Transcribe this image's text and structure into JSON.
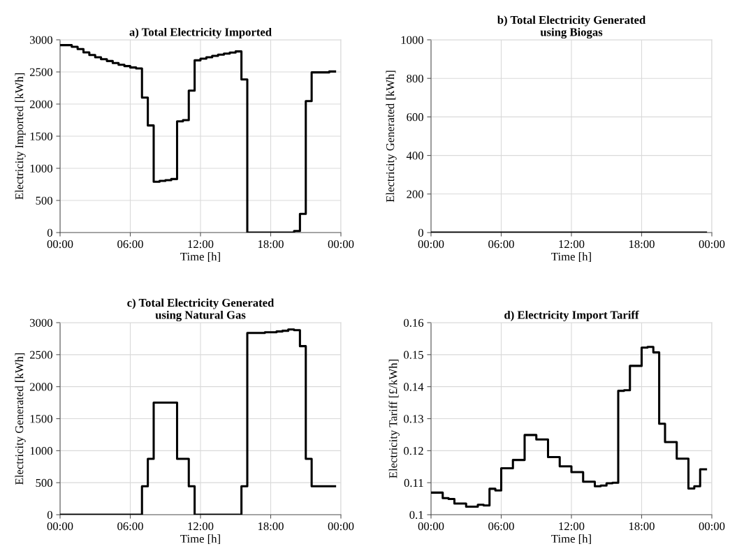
{
  "chart_data": [
    {
      "type": "step",
      "title": "a) Total Electricity Imported",
      "xlabel": "Time [h]",
      "ylabel": "Electricity Imported [kWh]",
      "x": [
        0,
        0.5,
        1,
        1.5,
        2,
        2.5,
        3,
        3.5,
        4,
        4.5,
        5,
        5.5,
        6,
        6.5,
        7,
        7.5,
        8,
        8.5,
        9,
        9.5,
        10,
        10.5,
        11,
        11.5,
        12,
        12.5,
        13,
        13.5,
        14,
        14.5,
        15,
        15.5,
        16,
        16.5,
        17,
        17.5,
        18,
        18.5,
        19,
        19.5,
        20,
        20.5,
        21,
        21.5,
        22,
        22.5,
        23,
        23.5
      ],
      "series": [
        {
          "color": "#000000",
          "values": [
            2917,
            2917,
            2891,
            2855,
            2804,
            2764,
            2728,
            2699,
            2670,
            2638,
            2612,
            2591,
            2569,
            2554,
            2101,
            1667,
            790,
            804,
            815,
            833,
            1732,
            1750,
            2210,
            2681,
            2706,
            2728,
            2750,
            2768,
            2786,
            2801,
            2819,
            2384,
            0,
            0,
            0,
            0,
            0,
            0,
            0,
            0,
            25,
            290,
            2047,
            2493,
            2493,
            2493,
            2507,
            2507
          ]
        }
      ],
      "xlim": [
        0,
        24
      ],
      "xticks": [
        {
          "value": 0,
          "label": "00:00"
        },
        {
          "value": 6,
          "label": "06:00"
        },
        {
          "value": 12,
          "label": "12:00"
        },
        {
          "value": 18,
          "label": "18:00"
        },
        {
          "value": 24,
          "label": "00:00"
        }
      ],
      "ylim": [
        0,
        3000
      ],
      "yticks": [
        0,
        500,
        1000,
        1500,
        2000,
        2500,
        3000
      ],
      "grid": true,
      "line_style": "solid"
    },
    {
      "type": "step",
      "title": "b) Total Electricity Generated\nusing Biogas",
      "xlabel": "Time [h]",
      "ylabel": "Electricity Generated [kWh]",
      "x": [
        0,
        0.5,
        1,
        1.5,
        2,
        2.5,
        3,
        3.5,
        4,
        4.5,
        5,
        5.5,
        6,
        6.5,
        7,
        7.5,
        8,
        8.5,
        9,
        9.5,
        10,
        10.5,
        11,
        11.5,
        12,
        12.5,
        13,
        13.5,
        14,
        14.5,
        15,
        15.5,
        16,
        16.5,
        17,
        17.5,
        18,
        18.5,
        19,
        19.5,
        20,
        20.5,
        21,
        21.5,
        22,
        22.5,
        23,
        23.5
      ],
      "series": [
        {
          "color": "#000000",
          "values": [
            0,
            0,
            0,
            0,
            0,
            0,
            0,
            0,
            0,
            0,
            0,
            0,
            0,
            0,
            0,
            0,
            0,
            0,
            0,
            0,
            0,
            0,
            0,
            0,
            0,
            0,
            0,
            0,
            0,
            0,
            0,
            0,
            0,
            0,
            0,
            0,
            0,
            0,
            0,
            0,
            0,
            0,
            0,
            0,
            0,
            0,
            0,
            0
          ]
        }
      ],
      "xlim": [
        0,
        24
      ],
      "xticks": [
        {
          "value": 0,
          "label": "00:00"
        },
        {
          "value": 6,
          "label": "06:00"
        },
        {
          "value": 12,
          "label": "12:00"
        },
        {
          "value": 18,
          "label": "18:00"
        },
        {
          "value": 24,
          "label": "00:00"
        }
      ],
      "ylim": [
        0,
        1000
      ],
      "yticks": [
        0,
        200,
        400,
        600,
        800,
        1000
      ],
      "grid": true,
      "line_style": "solid"
    },
    {
      "type": "step",
      "title": "c) Total Electricity Generated\nusing Natural Gas",
      "xlabel": "Time [h]",
      "ylabel": "Electricity Generated [kWh]",
      "x": [
        0,
        0.5,
        1,
        1.5,
        2,
        2.5,
        3,
        3.5,
        4,
        4.5,
        5,
        5.5,
        6,
        6.5,
        7,
        7.5,
        8,
        8.5,
        9,
        9.5,
        10,
        10.5,
        11,
        11.5,
        12,
        12.5,
        13,
        13.5,
        14,
        14.5,
        15,
        15.5,
        16,
        16.5,
        17,
        17.5,
        18,
        18.5,
        19,
        19.5,
        20,
        20.5,
        21,
        21.5,
        22,
        22.5,
        23,
        23.5
      ],
      "series": [
        {
          "color": "#000000",
          "values": [
            0,
            0,
            0,
            0,
            0,
            0,
            0,
            0,
            0,
            0,
            0,
            0,
            0,
            0,
            444,
            873,
            1750,
            1750,
            1750,
            1750,
            873,
            873,
            444,
            0,
            0,
            0,
            0,
            0,
            0,
            0,
            0,
            444,
            2840,
            2840,
            2840,
            2851,
            2851,
            2862,
            2873,
            2894,
            2883,
            2633,
            873,
            444,
            444,
            444,
            444,
            444
          ]
        }
      ],
      "xlim": [
        0,
        24
      ],
      "xticks": [
        {
          "value": 0,
          "label": "00:00"
        },
        {
          "value": 6,
          "label": "06:00"
        },
        {
          "value": 12,
          "label": "12:00"
        },
        {
          "value": 18,
          "label": "18:00"
        },
        {
          "value": 24,
          "label": "00:00"
        }
      ],
      "ylim": [
        0,
        3000
      ],
      "yticks": [
        0,
        500,
        1000,
        1500,
        2000,
        2500,
        3000
      ],
      "grid": true,
      "line_style": "solid"
    },
    {
      "type": "step",
      "title": "d) Electricity Import Tariff",
      "xlabel": "Time [h]",
      "ylabel": "Electricity Tariff [£/kWh]",
      "x": [
        0,
        0.5,
        1,
        1.5,
        2,
        2.5,
        3,
        3.5,
        4,
        4.5,
        5,
        5.5,
        6,
        6.5,
        7,
        7.5,
        8,
        8.5,
        9,
        9.5,
        10,
        10.5,
        11,
        11.5,
        12,
        12.5,
        13,
        13.5,
        14,
        14.5,
        15,
        15.5,
        16,
        16.5,
        17,
        17.5,
        18,
        18.5,
        19,
        19.5,
        20,
        20.5,
        21,
        21.5,
        22,
        22.5,
        23,
        23.5
      ],
      "series": [
        {
          "color": "#000000",
          "values": [
            0.1069,
            0.1069,
            0.1052,
            0.1049,
            0.1035,
            0.1035,
            0.1025,
            0.1025,
            0.1031,
            0.1029,
            0.1081,
            0.1076,
            0.1145,
            0.1145,
            0.1171,
            0.1171,
            0.1249,
            0.1249,
            0.1235,
            0.1235,
            0.118,
            0.118,
            0.1151,
            0.1151,
            0.1133,
            0.1133,
            0.1103,
            0.1103,
            0.1089,
            0.1091,
            0.1098,
            0.11,
            0.1387,
            0.1389,
            0.1465,
            0.1465,
            0.1522,
            0.1524,
            0.1507,
            0.1284,
            0.1227,
            0.1227,
            0.1175,
            0.1175,
            0.1082,
            0.1089,
            0.1142,
            0.1142
          ]
        }
      ],
      "xlim": [
        0,
        24
      ],
      "xticks": [
        {
          "value": 0,
          "label": "00:00"
        },
        {
          "value": 6,
          "label": "06:00"
        },
        {
          "value": 12,
          "label": "12:00"
        },
        {
          "value": 18,
          "label": "18:00"
        },
        {
          "value": 24,
          "label": "00:00"
        }
      ],
      "ylim": [
        0.1,
        0.16
      ],
      "yticks": [
        0.1,
        0.11,
        0.12,
        0.13,
        0.14,
        0.15,
        0.16
      ],
      "grid": true,
      "line_style": "solid"
    }
  ]
}
